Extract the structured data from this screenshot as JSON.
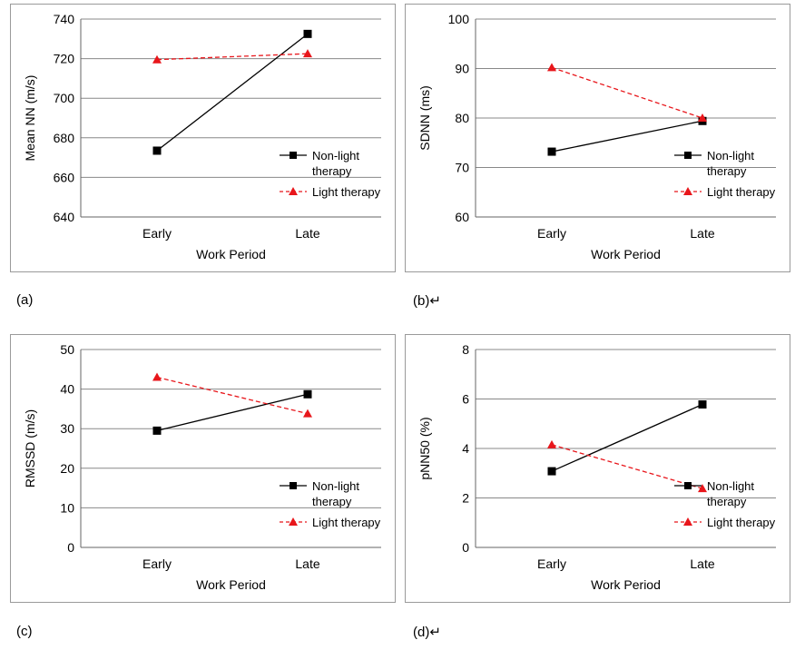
{
  "panel_labels": [
    "(a)",
    "(b)↵",
    "(c)",
    "(d)↵"
  ],
  "colors": {
    "non_light": "#000000",
    "light": "#e8161b",
    "grid": "#888888"
  },
  "chart_data": [
    {
      "type": "line",
      "categories": [
        "Early",
        "Late"
      ],
      "xlabel": "Work Period",
      "ylabel": "Mean NN (m/s)",
      "ylim": [
        640,
        740
      ],
      "yticks": [
        640,
        660,
        680,
        700,
        720,
        740
      ],
      "grid": true,
      "legend": "right",
      "series": [
        {
          "name": "Non-light therapy",
          "values": [
            673.5,
            732.5
          ],
          "marker": "square",
          "style": "solid"
        },
        {
          "name": "Light therapy",
          "values": [
            719.5,
            722.5
          ],
          "marker": "triangle",
          "style": "dashed"
        }
      ]
    },
    {
      "type": "line",
      "categories": [
        "Early",
        "Late"
      ],
      "xlabel": "Work Period",
      "ylabel": "SDNN (ms)",
      "ylim": [
        60,
        100
      ],
      "yticks": [
        60,
        70,
        80,
        90,
        100
      ],
      "grid": true,
      "legend": "right",
      "series": [
        {
          "name": "Non-light therapy",
          "values": [
            73.2,
            79.4
          ],
          "marker": "square",
          "style": "solid"
        },
        {
          "name": "Light therapy",
          "values": [
            90.2,
            80.0
          ],
          "marker": "triangle",
          "style": "dashed"
        }
      ]
    },
    {
      "type": "line",
      "categories": [
        "Early",
        "Late"
      ],
      "xlabel": "Work Period",
      "ylabel": "RMSSD (m/s)",
      "ylim": [
        0,
        50
      ],
      "yticks": [
        0,
        10,
        20,
        30,
        40,
        50
      ],
      "grid": true,
      "legend": "right",
      "series": [
        {
          "name": "Non-light therapy",
          "values": [
            29.5,
            38.7
          ],
          "marker": "square",
          "style": "solid"
        },
        {
          "name": "Light therapy",
          "values": [
            43.0,
            33.8
          ],
          "marker": "triangle",
          "style": "dashed"
        }
      ]
    },
    {
      "type": "line",
      "categories": [
        "Early",
        "Late"
      ],
      "xlabel": "Work Period",
      "ylabel": "pNN50 (%)",
      "ylim": [
        0,
        8
      ],
      "yticks": [
        0,
        2,
        4,
        6,
        8
      ],
      "grid": true,
      "legend": "right",
      "series": [
        {
          "name": "Non-light therapy",
          "values": [
            3.08,
            5.78
          ],
          "marker": "square",
          "style": "solid"
        },
        {
          "name": "Light therapy",
          "values": [
            4.15,
            2.38
          ],
          "marker": "triangle",
          "style": "dashed"
        }
      ]
    }
  ]
}
